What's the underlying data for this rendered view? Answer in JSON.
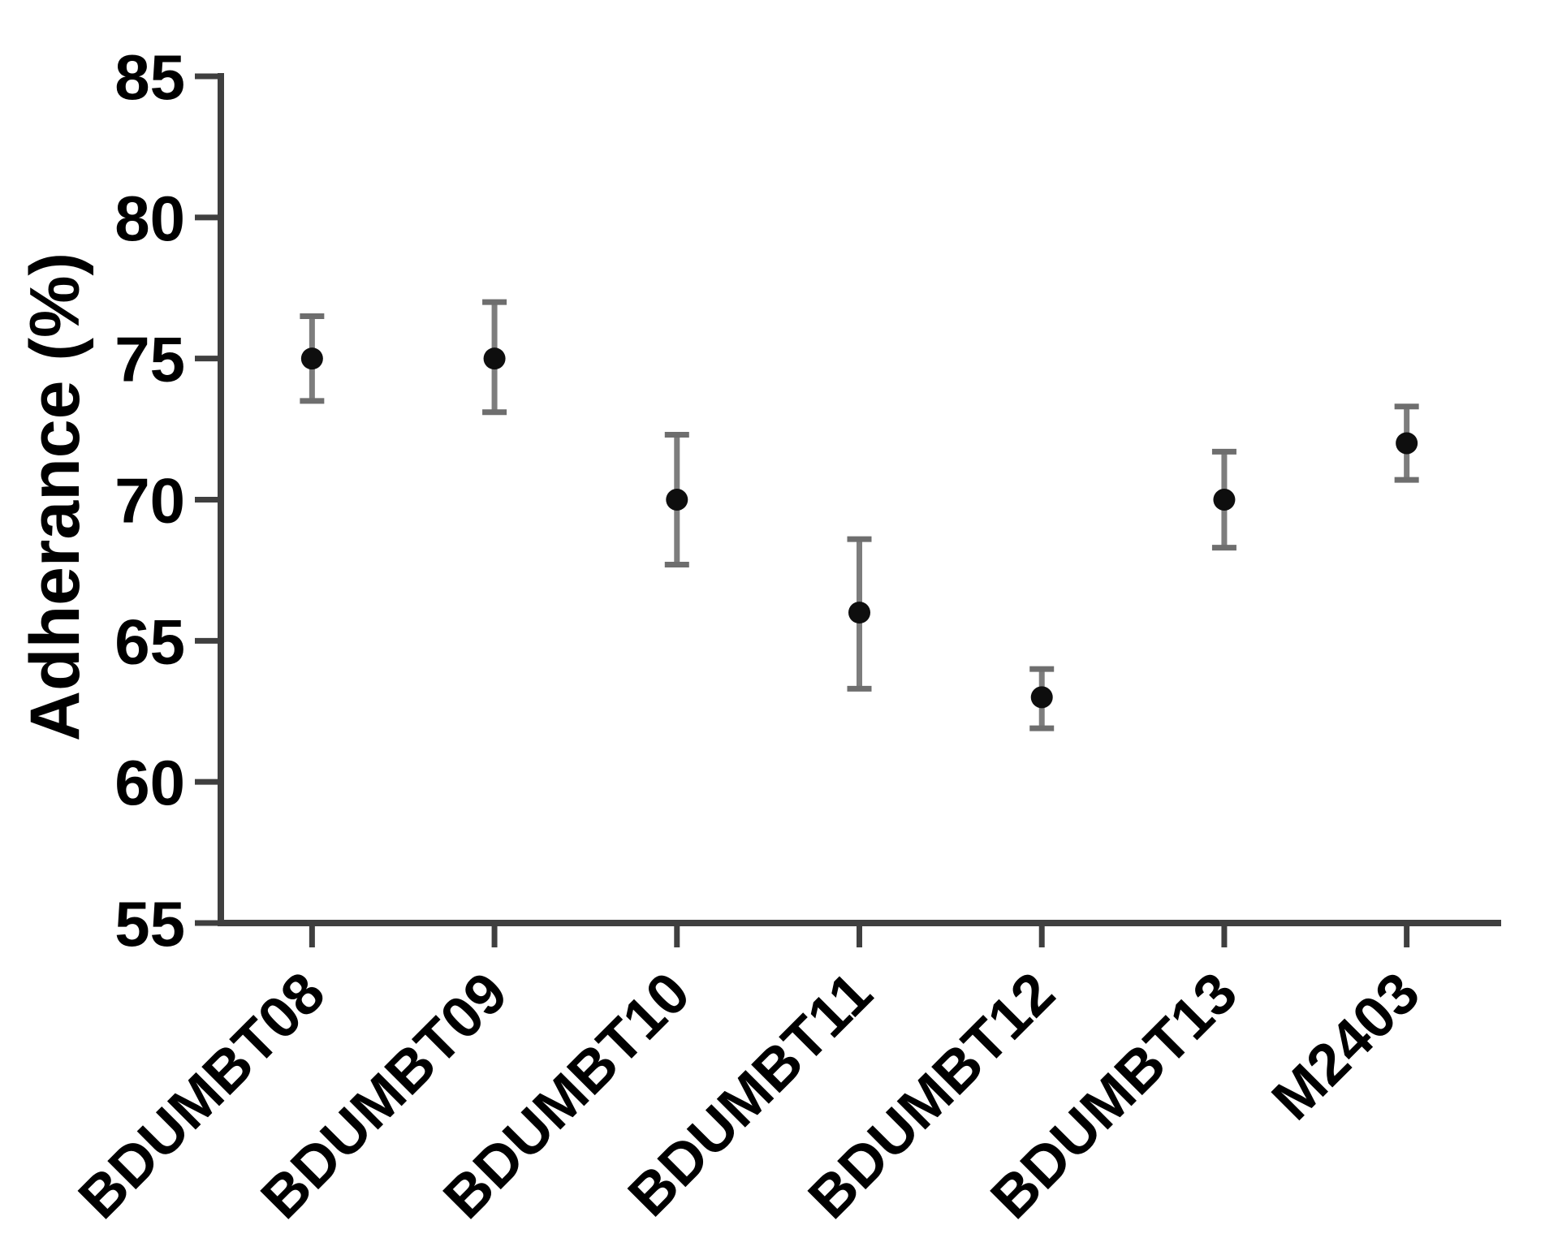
{
  "chart_data": {
    "type": "scatter",
    "title": "",
    "xlabel": "",
    "ylabel": "Adherance (%)",
    "categories": [
      "BDUMBT08",
      "BDUMBT09",
      "BDUMBT10",
      "BDUMBT11",
      "BDUMBT12",
      "BDUMBT13",
      "M2403"
    ],
    "series": [
      {
        "name": "Adherance",
        "values": [
          75,
          75,
          70,
          66,
          63,
          70,
          72
        ],
        "error_upper": [
          76.5,
          77.0,
          72.3,
          68.6,
          64.0,
          71.7,
          73.3
        ],
        "error_lower": [
          73.5,
          73.1,
          67.7,
          63.3,
          61.9,
          68.3,
          70.7
        ]
      }
    ],
    "ylim": [
      55,
      85
    ],
    "yticks": [
      55,
      60,
      65,
      70,
      75,
      80,
      85
    ],
    "grid": "off",
    "legend": "none",
    "marker": "filled-circle",
    "x_tick_label_rotation_deg": -45
  },
  "colors": {
    "background": "#ffffff",
    "axis": "#3f3f3f",
    "text": "#000000",
    "marker": "#0e0e0e",
    "error_bar": "#7d7d7d",
    "error_cap": "#6e6e6e"
  }
}
